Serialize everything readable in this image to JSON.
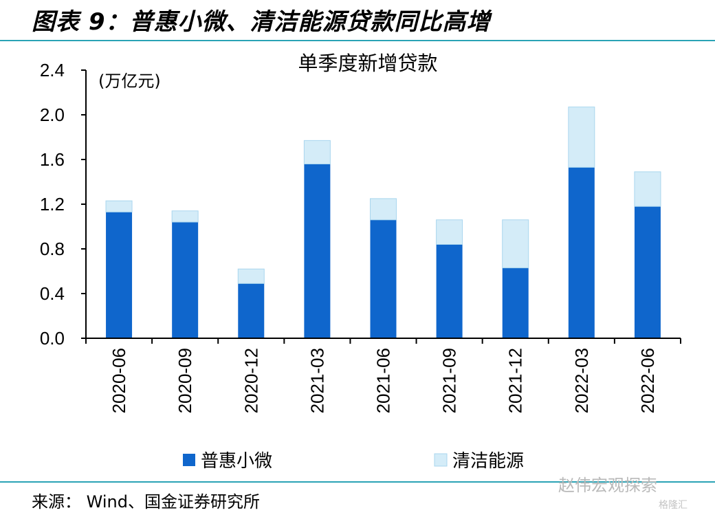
{
  "figure_title": "图表 9：普惠小微、清洁能源贷款同比高增",
  "source_note": "来源：  Wind、国金证券研究所",
  "watermark": "赵伟宏观探索",
  "watermark2": "格隆汇",
  "colors": {
    "series1": "#0f66cc",
    "series2": "#d4ecf8",
    "rule": "#2aa3b5"
  },
  "chart_data": {
    "type": "bar",
    "stacked": true,
    "title": "单季度新增贷款",
    "unit_label": "(万亿元)",
    "categories": [
      "2020-06",
      "2020-09",
      "2020-12",
      "2021-03",
      "2021-06",
      "2021-09",
      "2021-12",
      "2022-03",
      "2022-06"
    ],
    "series": [
      {
        "name": "普惠小微",
        "values": [
          1.13,
          1.04,
          0.49,
          1.56,
          1.06,
          0.84,
          0.63,
          1.53,
          1.18
        ]
      },
      {
        "name": "清洁能源",
        "values": [
          0.1,
          0.1,
          0.13,
          0.21,
          0.19,
          0.22,
          0.43,
          0.54,
          0.31
        ]
      }
    ],
    "yticks": [
      "0.0",
      "0.4",
      "0.8",
      "1.2",
      "1.6",
      "2.0",
      "2.4"
    ],
    "ylim": [
      0,
      2.4
    ],
    "grid": false,
    "legend_position": "bottom"
  }
}
